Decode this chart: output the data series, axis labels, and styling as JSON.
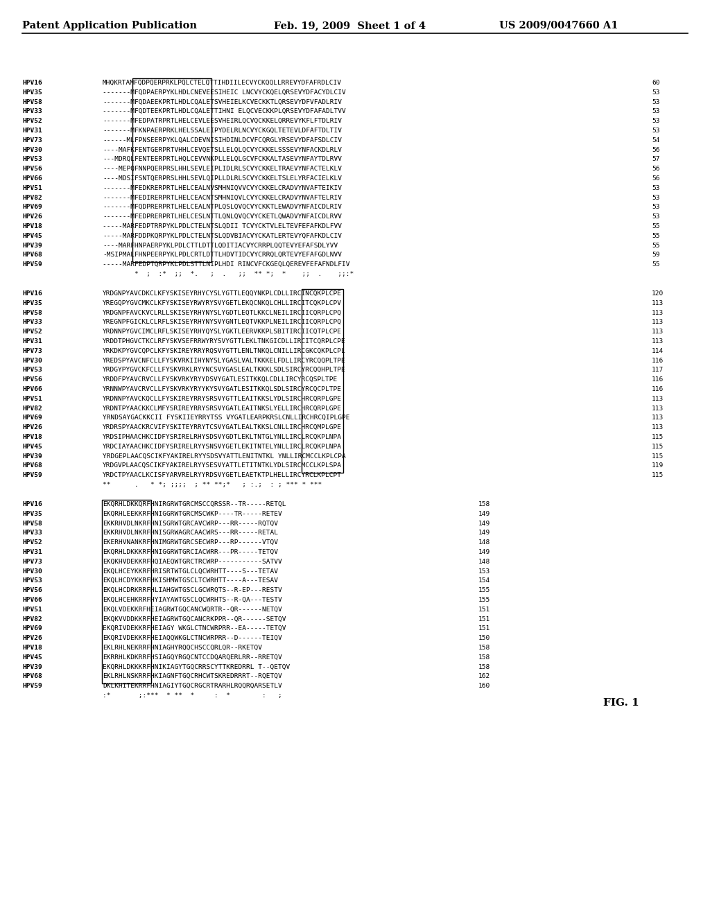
{
  "header_left": "Patent Application Publication",
  "header_mid": "Feb. 19, 2009  Sheet 1 of 4",
  "header_right": "US 2009/0047660 A1",
  "fig_label": "FIG. 1",
  "background": "#ffffff",
  "text_color": "#000000",
  "font_size_header": 10.5,
  "font_size_seq": 6.8,
  "block1": {
    "sequences": [
      [
        "HPV16",
        "MHQKRTAMFQDPQERPRKLPQLCTELQTTIHDIILECVYCKQQLLRREVYDFAFRDLCIV",
        "60"
      ],
      [
        "HPV35",
        "-------MFQDPAERPYKLHDLCNEVEESIHEIC LNCVYCKQELQRSEVYDFACYDLCIV",
        "53"
      ],
      [
        "HPV58",
        "-------MFQDAEEKPRTLHDLCQALETSVHEIELKCVECKKTLQRSEVYDFVFADLRIV",
        "53"
      ],
      [
        "HPV33",
        "-------MFQDTEEKPRTLHDLCQALETTIHNI ELQCVECKKPLQRSEVYDFAFADLTVV",
        "53"
      ],
      [
        "HPV52",
        "-------MFEDPATRPRTLHELCEVLEESVHEIRLQCVQCKKELQRREVYKFLFTDLRIV",
        "53"
      ],
      [
        "HPV31",
        "-------MFKNPAERPRKLHELSSALEIPYDELRLNCVYCKGQLTETEVLDFAFTDLTIV",
        "53"
      ],
      [
        "HPV73",
        "------MLFPNSEERPYKLQALCDEVNISIHDINLDCVFCQRGLYRSEVYDFAFSDLCIV",
        "54"
      ],
      [
        "HPV30",
        "----MAFKFENTGERPRTVHHLCEVQETSLLELQLQCVYCKKELSSSEVYNFACKDLRLV",
        "56"
      ],
      [
        "HPV53",
        "---MDRQLFENTEERPRTLHQLCEVVNKPLLELQLGCVFCKKALTASEVYNFAYTDLRVV",
        "57"
      ],
      [
        "HPV56",
        "----MEPQFNNPQERPRSLHHLSEVLEIPLIDLRLSCVYCKKELTRAEVYNFACTELKLV",
        "56"
      ],
      [
        "HPV66",
        "----MDSIFSNTQERPRSLHHLSEVLQIPLLDLRLSCVYCKKELTSLELYRFACIELKLV",
        "56"
      ],
      [
        "HPV51",
        "-------MFEDKRERPRTLHELCEALNVSMHNIQVVCVYCKKELCRADVYNVAFTEIKIV",
        "53"
      ],
      [
        "HPV82",
        "-------MFEDIRERPRTLHELCEACNTSMHNIQVLCVYCKKELCRADVYNVAFTELRIV",
        "53"
      ],
      [
        "HPV69",
        "-------MFQDPRERPRTLHELCEALNTPLQSLQVQCVYCKKTLEWADVYNFAICDLRIV",
        "53"
      ],
      [
        "HPV26",
        "-------MFEDPRERPRTLHELCESLNTTLQNLQVQCVYCKETLQWADVYNFAICDLRVV",
        "53"
      ],
      [
        "HPV18",
        "-----MARFEDPTRRPYKLPDLCTELNTSLQDII TCVYCKTVLELTEVFEFAFKDLFVV",
        "55"
      ],
      [
        "HPV45",
        "-----MARFDDPKQRPYKLPDLCTELNTSLQDVBIACVYCKATLERTEVYQFAFKDLCIV",
        "55"
      ],
      [
        "HPV39",
        "----MARFHNPAERPYKLPDLCTTLDTTLQDITIACVYCRRPLQQTEVYEFAFSDLYVV",
        "55"
      ],
      [
        "HPV68",
        "-MSIPMALFHNPEERPYKLPDLCRTLDTTLHDVTIDCVYCRRQLQRTEVYEFAFGDLNVV",
        "59"
      ],
      [
        "HPV59",
        "-----MARFEDPTQRPYKLPDLSTTLNIPLHDI RINCVFCKGEQLQEREVFEFAFNDLFIV",
        "55"
      ]
    ],
    "consensus": "        *  ;  :*  ;;  *.   ;  .   ;;  ** *;  *    ;;  .    ;;:*"
  },
  "block2": {
    "sequences": [
      [
        "HPV16",
        "YRDGNPYAVCDKCLKFYSKISEYRHYCYSLYGTTLEQQYNKPLCDLLIRCINCQKPLCPE",
        "120"
      ],
      [
        "HPV35",
        "YREGQPYGVCMKCLKFYSKISEYRWYRYSVYGETLEKQCNKQLCHLLIRCITCQKPLCPV",
        "113"
      ],
      [
        "HPV58",
        "YRDGNPFAVCKVCLRLLSKISEYRHYNYSLYGDTLEQTLKKCLNEILIRCIICQRPLCPQ",
        "113"
      ],
      [
        "HPV33",
        "YREGNPFGICKLCLRFLSKISEYRHYNYSVYGNTLEQTVKKPLNEILIRCIICQRPLCPQ",
        "113"
      ],
      [
        "HPV52",
        "YRDNNPYGVCIMCLRFLSKISEYRHYQYSLYGKTLEERVKKPLSBITIRCIICQTPLCPE",
        "113"
      ],
      [
        "HPV31",
        "YRDDTPHGVCTKCLRFYSKVSEFRRWYRYSVYGTTLEKLTNKGICDLLIRCITCQRPLCPE",
        "113"
      ],
      [
        "HPV73",
        "YRKDKPYGVCQPCLKFYSKIREYRRYRQSVYGTTLENLTNKQLCNILLIRCGKCQKPLCPL",
        "114"
      ],
      [
        "HPV30",
        "YREDSPYAVCNFCLLFYSKVRKIIHYNYSLYGASLVALTKKKELFDLLIRCYRCQQPLTPE",
        "116"
      ],
      [
        "HPV53",
        "YRDGYPYGVCKFCLLFYSKVRKLRYYNCSVYGASLEALTKKKLSDLSIRCYRCQQHPLTPE",
        "117"
      ],
      [
        "HPV56",
        "YRDDFPYAVCRVCLLFYSKVRKYRYYDSVYGATLESITKKQLCDLLIRCYRCQSPLTPE",
        "116"
      ],
      [
        "HPV66",
        "YRNNWPYAVCRVCLLFYSKVRKYRYYKYSVYGATLESITKKQLSDLSIRCYRCQCPLTPE",
        "116"
      ],
      [
        "HPV51",
        "YRDNNPYAVCKQCLLFYSKIREYRRYSRSVYGTTLEAITKKSLYDLSIRCHRCQRPLGPE",
        "113"
      ],
      [
        "HPV82",
        "YRDNTPYAACKKCLMFYSRIREYRRYSRSVYGATLEAITNKSLYELLIRCHRCQRPLGPE",
        "113"
      ],
      [
        "HPV69",
        "YRNDSAYGACKKCII FYSKIIEYRRYTSS VYGATLEARPKRSLCNLLIRCHRCQIPLGPE",
        "113"
      ],
      [
        "HPV26",
        "YRDRSPYAACKRCVIFYSKITEYRRYTCSVYGATLEALTKKSLCNLLIRCHRCQMPLGPE",
        "113"
      ],
      [
        "HPV18",
        "YRDSIPHAACHKCIDFYSRIRELRHYSDSVYGDTLEKLTNTGLYNLLIRCLRCQKPLNPA",
        "115"
      ],
      [
        "HPV45",
        "YRDCIAYAACHKCIDFYSRIRELRYYSNSVYGETLEKITNTELYNLLIRCLRCQKPLNPA",
        "115"
      ],
      [
        "HPV39",
        "YRDGEPLAACQSCIKFYAKIRELRYYSDSVYATTLENITNTKL YNLLIRCMCCLKPLCPA",
        "115"
      ],
      [
        "HPV68",
        "YRDGVPLAACQSCIKFYAKIRELRYYSESVYATTLETITNTKLYDLSIRCMCCLKPLSPA",
        "119"
      ],
      [
        "HPV59",
        "YRDCTPYAACLKCISFYARVRELRYYRDSVYGETLEAETKTPLHELLIRCYRCLKPLCPT",
        "115"
      ]
    ],
    "consensus": "**      .   * *; ;;;;  ; ** **;*   ; :.;  : ; *** * ***"
  },
  "block3": {
    "sequences": [
      [
        "HPV16",
        "EKQRHLDKKQRFHNIRGRWTGRCMSCCQRSSR--TR-----RETQL",
        "158"
      ],
      [
        "HPV35",
        "EKQRHLEEKKRFHNIGGRWTGRCMSCWKP----TR-----RETEV",
        "149"
      ],
      [
        "HPV58",
        "EKKRHVDLNKRFHNISGRWTGRCAVCWRP---RR-----RQTQV",
        "149"
      ],
      [
        "HPV33",
        "EKKRHVDLNKRFHNISGRWAGRCAACWRS---RR-----RETAL",
        "149"
      ],
      [
        "HPV52",
        "EKERHVNANKRFHNIMGRWTGRCSECWRP---RP------VTQV",
        "148"
      ],
      [
        "HPV31",
        "EKQRHLDKKKRFHNIGGRWTGRCIACWRR---PR-----TETQV",
        "149"
      ],
      [
        "HPV73",
        "EKQKHVDEKKRFHQIAEQWTGRCTRCWRP-----------SATVV",
        "148"
      ],
      [
        "HPV30",
        "EKQLHCEYKKRFHRISRTWTGLCLQCWRHTT----S---TETAV",
        "153"
      ],
      [
        "HPV53",
        "EKQLHCDYKKRFHKISHMWTGSCLTCWRHTT----A---TESAV",
        "154"
      ],
      [
        "HPV56",
        "EKQLHCDRKRRFHLIAHGWTGSCLGCWRQTS--R-EP---RESTV",
        "155"
      ],
      [
        "HPV66",
        "EKQLHCEHKRRFHYIAYAWTGSCLQCWRHTS--R-QA---TESTV",
        "155"
      ],
      [
        "HPV51",
        "EKQLVDEKKRFHEIAGRWTGQCANCWQRTR--QR------NETQV",
        "151"
      ],
      [
        "HPV82",
        "EKQKVVDDKKRFHEIAGRWTGQCANCRKPPR--QR------SETQV",
        "151"
      ],
      [
        "HPV69",
        "EKQRIVDEKKRFHEIAGY WKGLCTNCWRPRR--EA-----TETQV",
        "151"
      ],
      [
        "HPV26",
        "EKQRIVDEKKRFHEIAQQWKGLCTNCWRPRR--D------TEIQV",
        "150"
      ],
      [
        "HPV18",
        "EKLRHLNEKRRFHNIAGHYRQQCHSCCQRLQR--RKETQV",
        "158"
      ],
      [
        "HPV45",
        "EKRRHLKDKRRFHSIAGQYRGQCNTCCDQARQERLRR--RRETQV",
        "158"
      ],
      [
        "HPV39",
        "EKQRHLDKKKRFHNIKIAGYTGQCRRSCYTTKREDRRL T--QETQV",
        "158"
      ],
      [
        "HPV68",
        "EKLRHLNSKRRFHKIAGNFTGQCRHCWTSKREDRRRТ--RQETQV",
        "162"
      ],
      [
        "HPV59",
        "DKLKHITEKRRFHNIAGIYTGQCRGCRTRARHLRQQRQARSETLV",
        "160"
      ]
    ],
    "consensus": ":*       ;:***  * **  *     :  *        :   ;"
  }
}
